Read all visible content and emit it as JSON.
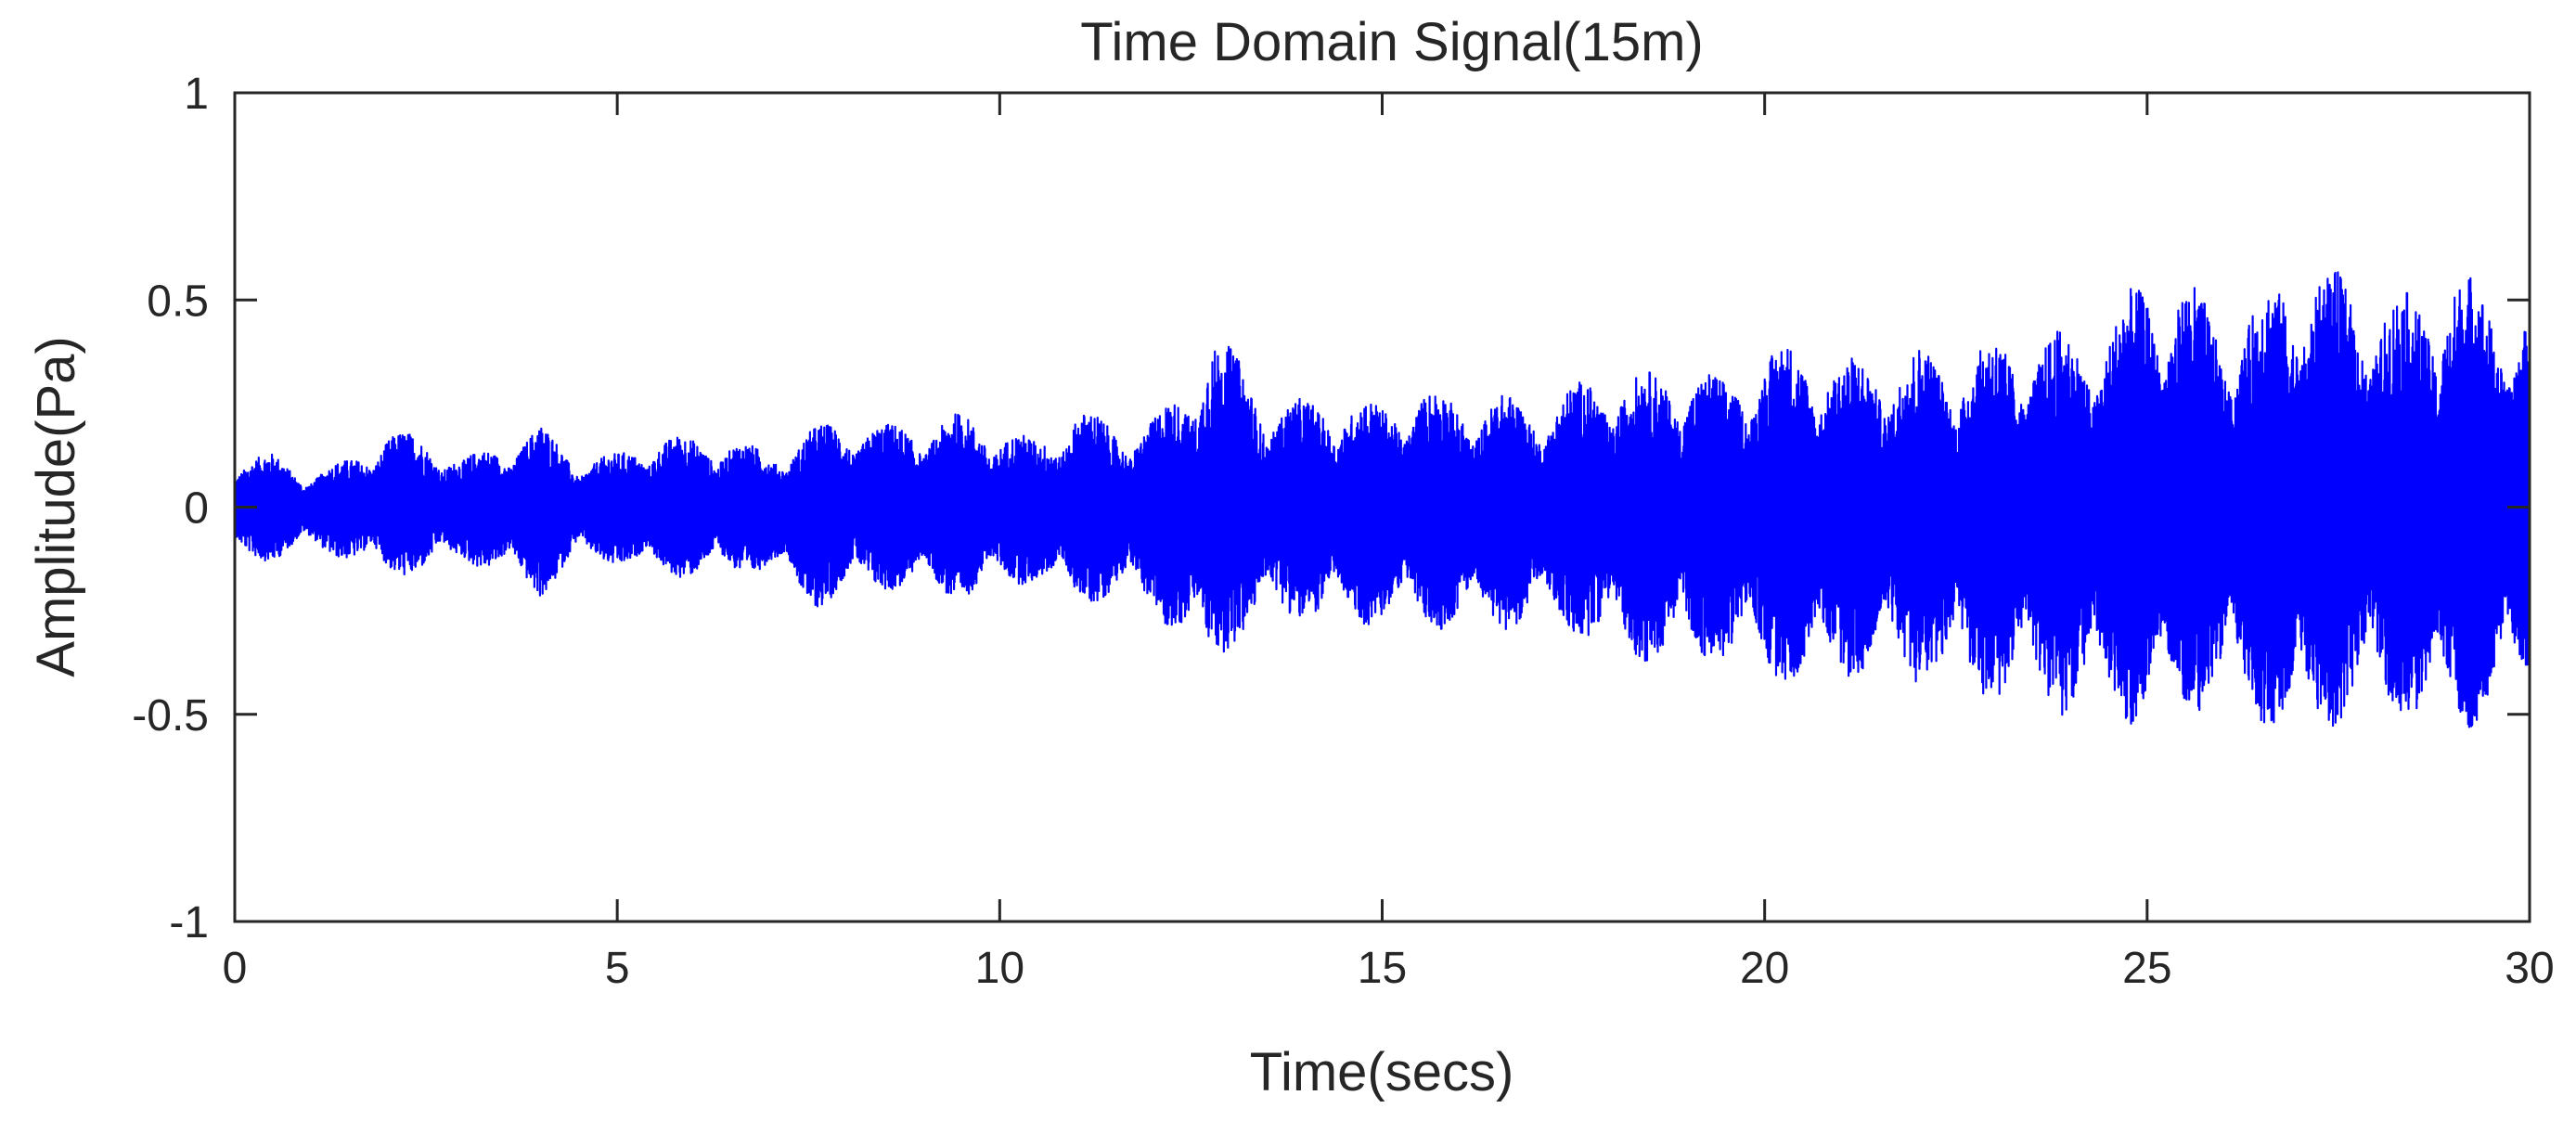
{
  "chart_data": {
    "type": "line",
    "title": "Time Domain Signal(15m)",
    "xlabel": "Time(secs)",
    "ylabel": "Amplitude(Pa)",
    "xlim": [
      0,
      30
    ],
    "ylim": [
      -1,
      1
    ],
    "xticks": [
      0,
      5,
      10,
      15,
      20,
      25,
      30
    ],
    "xtick_labels": [
      "0",
      "5",
      "10",
      "15",
      "20",
      "25",
      "30"
    ],
    "yticks": [
      1,
      0.5,
      0,
      -0.5,
      -1
    ],
    "ytick_labels": [
      "1",
      "0.5",
      "0",
      "-0.5",
      "-1"
    ],
    "grid": false,
    "line_color": "#0000ff",
    "axis_color": "#262626",
    "series": [
      {
        "time": [
          0,
          0.5,
          1,
          1.5,
          2,
          2.5,
          3,
          3.5,
          4,
          4.5,
          5,
          5.5,
          6,
          6.5,
          7,
          7.5,
          8,
          8.5,
          9,
          9.5,
          10,
          10.5,
          11,
          11.5,
          12,
          12.5,
          12.7,
          13,
          13.5,
          14,
          14.5,
          15,
          15.5,
          16,
          16.5,
          17,
          17.5,
          18,
          18.5,
          19,
          19.5,
          20,
          20.5,
          21,
          21.5,
          22,
          22.5,
          23,
          23.5,
          24,
          24.5,
          25,
          25.5,
          26,
          26.5,
          27,
          27.5,
          28,
          28.5,
          29,
          29.5,
          30
        ],
        "upper": [
          0.12,
          0.13,
          0.08,
          0.12,
          0.19,
          0.17,
          0.12,
          0.16,
          0.2,
          0.12,
          0.13,
          0.18,
          0.17,
          0.17,
          0.13,
          0.19,
          0.22,
          0.2,
          0.21,
          0.23,
          0.2,
          0.16,
          0.25,
          0.2,
          0.22,
          0.3,
          0.48,
          0.39,
          0.27,
          0.26,
          0.27,
          0.25,
          0.3,
          0.26,
          0.28,
          0.25,
          0.3,
          0.33,
          0.33,
          0.35,
          0.31,
          0.39,
          0.4,
          0.36,
          0.37,
          0.39,
          0.37,
          0.41,
          0.42,
          0.43,
          0.46,
          0.58,
          0.56,
          0.46,
          0.52,
          0.62,
          0.57,
          0.53,
          0.52,
          0.6,
          0.52,
          0.48
        ],
        "lower": [
          -0.13,
          -0.13,
          -0.1,
          -0.13,
          -0.17,
          -0.16,
          -0.13,
          -0.17,
          -0.22,
          -0.13,
          -0.14,
          -0.17,
          -0.17,
          -0.17,
          -0.15,
          -0.25,
          -0.22,
          -0.2,
          -0.21,
          -0.23,
          -0.2,
          -0.18,
          -0.24,
          -0.22,
          -0.25,
          -0.35,
          -0.44,
          -0.34,
          -0.28,
          -0.27,
          -0.3,
          -0.28,
          -0.3,
          -0.29,
          -0.3,
          -0.28,
          -0.31,
          -0.36,
          -0.38,
          -0.39,
          -0.37,
          -0.42,
          -0.44,
          -0.41,
          -0.42,
          -0.43,
          -0.45,
          -0.48,
          -0.47,
          -0.52,
          -0.5,
          -0.55,
          -0.5,
          -0.48,
          -0.52,
          -0.6,
          -0.52,
          -0.5,
          -0.53,
          -0.56,
          -0.5,
          -0.44
        ]
      }
    ]
  }
}
